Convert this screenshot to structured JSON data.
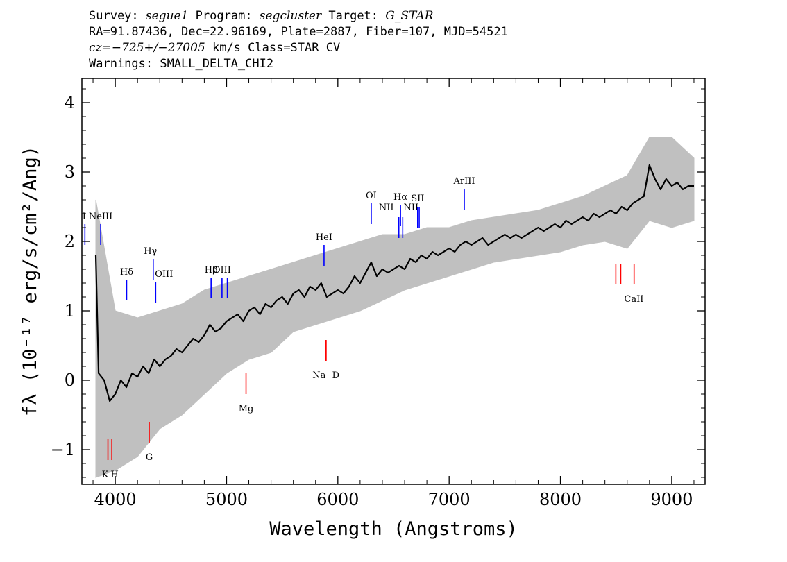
{
  "header": {
    "line1": {
      "survey_label": "Survey:",
      "survey": "segue1",
      "program_label": "Program:",
      "program": "segcluster",
      "target_label": "Target:",
      "target": "G_STAR"
    },
    "line2": "RA=91.87436, Dec=22.96169, Plate=2887, Fiber=107, MJD=54521",
    "line3": {
      "cz": "cz=−725+/−27005",
      "rest": " km/s Class=STAR CV"
    },
    "line4": "Warnings: SMALL_DELTA_CHI2"
  },
  "chart_data": {
    "type": "line",
    "xlabel": "Wavelength (Angstroms)",
    "ylabel": "fλ (10⁻¹⁷ erg/s/cm²/Ang)",
    "xlim": [
      3700,
      9300
    ],
    "ylim": [
      -1.5,
      4.35
    ],
    "xticks": [
      4000,
      5000,
      6000,
      7000,
      8000,
      9000
    ],
    "yticks": [
      -1,
      0,
      1,
      2,
      3,
      4
    ],
    "ytick_labels": [
      "−1",
      "0",
      "1",
      "2",
      "3",
      "4"
    ],
    "grid": false,
    "colors": {
      "flux": "#000000",
      "noise": "#c0c0c0",
      "emission": "#0000ff",
      "absorption": "#ff0000"
    },
    "series": [
      {
        "kind": "flux",
        "x": [
          3825,
          3850,
          3900,
          3950,
          4000,
          4050,
          4100,
          4150,
          4200,
          4250,
          4300,
          4350,
          4400,
          4450,
          4500,
          4550,
          4600,
          4650,
          4700,
          4750,
          4800,
          4850,
          4900,
          4950,
          5000,
          5050,
          5100,
          5150,
          5200,
          5250,
          5300,
          5350,
          5400,
          5450,
          5500,
          5550,
          5600,
          5650,
          5700,
          5750,
          5800,
          5850,
          5900,
          5950,
          6000,
          6050,
          6100,
          6150,
          6200,
          6250,
          6300,
          6350,
          6400,
          6450,
          6500,
          6550,
          6600,
          6650,
          6700,
          6750,
          6800,
          6850,
          6900,
          6950,
          7000,
          7050,
          7100,
          7150,
          7200,
          7250,
          7300,
          7350,
          7400,
          7450,
          7500,
          7550,
          7600,
          7650,
          7700,
          7750,
          7800,
          7850,
          7900,
          7950,
          8000,
          8050,
          8100,
          8150,
          8200,
          8250,
          8300,
          8350,
          8400,
          8450,
          8500,
          8550,
          8600,
          8650,
          8700,
          8750,
          8800,
          8850,
          8900,
          8950,
          9000,
          9050,
          9100,
          9150,
          9200
        ],
        "y": [
          1.8,
          0.1,
          0.0,
          -0.3,
          -0.2,
          0.0,
          -0.1,
          0.1,
          0.05,
          0.2,
          0.1,
          0.3,
          0.2,
          0.3,
          0.35,
          0.45,
          0.4,
          0.5,
          0.6,
          0.55,
          0.65,
          0.8,
          0.7,
          0.75,
          0.85,
          0.9,
          0.95,
          0.85,
          1.0,
          1.05,
          0.95,
          1.1,
          1.05,
          1.15,
          1.2,
          1.1,
          1.25,
          1.3,
          1.2,
          1.35,
          1.3,
          1.4,
          1.2,
          1.25,
          1.3,
          1.25,
          1.35,
          1.5,
          1.4,
          1.55,
          1.7,
          1.5,
          1.6,
          1.55,
          1.6,
          1.65,
          1.6,
          1.75,
          1.7,
          1.8,
          1.75,
          1.85,
          1.8,
          1.85,
          1.9,
          1.85,
          1.95,
          2.0,
          1.95,
          2.0,
          2.05,
          1.95,
          2.0,
          2.05,
          2.1,
          2.05,
          2.1,
          2.05,
          2.1,
          2.15,
          2.2,
          2.15,
          2.2,
          2.25,
          2.2,
          2.3,
          2.25,
          2.3,
          2.35,
          2.3,
          2.4,
          2.35,
          2.4,
          2.45,
          2.4,
          2.5,
          2.45,
          2.55,
          2.6,
          2.65,
          3.1,
          2.9,
          2.75,
          2.9,
          2.8,
          2.85,
          2.75,
          2.8,
          2.8
        ]
      },
      {
        "kind": "noise_envelope",
        "x": [
          3825,
          4000,
          4200,
          4400,
          4600,
          4800,
          5000,
          5200,
          5400,
          5600,
          5800,
          6000,
          6200,
          6400,
          6600,
          6800,
          7000,
          7200,
          7400,
          7600,
          7800,
          8000,
          8200,
          8400,
          8600,
          8800,
          9000,
          9200
        ],
        "upper": [
          2.6,
          1.0,
          0.9,
          1.0,
          1.1,
          1.3,
          1.4,
          1.5,
          1.6,
          1.7,
          1.8,
          1.9,
          2.0,
          2.1,
          2.1,
          2.2,
          2.2,
          2.3,
          2.35,
          2.4,
          2.45,
          2.55,
          2.65,
          2.8,
          2.95,
          3.5,
          3.5,
          3.2
        ],
        "lower": [
          -1.4,
          -1.3,
          -1.1,
          -0.7,
          -0.5,
          -0.2,
          0.1,
          0.3,
          0.4,
          0.7,
          0.8,
          0.9,
          1.0,
          1.15,
          1.3,
          1.4,
          1.5,
          1.6,
          1.7,
          1.75,
          1.8,
          1.85,
          1.95,
          2.0,
          1.9,
          2.3,
          2.2,
          2.3
        ]
      }
    ],
    "line_markers": [
      {
        "label": "[NeIII]",
        "display": "NeIII",
        "x": 3869,
        "kind": "emission",
        "y1": 2.25,
        "y2": 1.95,
        "label_y": 2.32
      },
      {
        "label": "[OII]",
        "display": "I",
        "x": 3727,
        "kind": "emission",
        "y1": 2.25,
        "y2": 1.95,
        "label_y": 2.32
      },
      {
        "label": "Hδ",
        "display": "Hδ",
        "x": 4102,
        "kind": "emission",
        "y1": 1.45,
        "y2": 1.15,
        "label_y": 1.52
      },
      {
        "label": "Hγ",
        "display": "Hγ",
        "x": 4341,
        "kind": "emission",
        "y1": 1.75,
        "y2": 1.45,
        "label_y": 1.82
      },
      {
        "label": "OIII",
        "display": "OIII",
        "x": 4363,
        "kind": "emission",
        "y1": 1.42,
        "y2": 1.12,
        "label_y": 1.49
      },
      {
        "label": "Hβ",
        "display": "Hβ",
        "x": 4861,
        "kind": "emission",
        "y1": 1.48,
        "y2": 1.18,
        "label_y": 1.55
      },
      {
        "label": "OIII",
        "display": "OIII",
        "x": 4959,
        "kind": "emission",
        "y1": 1.48,
        "y2": 1.18,
        "label_y": 1.55
      },
      {
        "label": "OIII",
        "display": "",
        "x": 5007,
        "kind": "emission",
        "y1": 1.48,
        "y2": 1.18,
        "label_y": 1.55
      },
      {
        "label": "HeI",
        "display": "HeI",
        "x": 5876,
        "kind": "emission",
        "y1": 1.95,
        "y2": 1.65,
        "label_y": 2.02
      },
      {
        "label": "OI",
        "display": "OI",
        "x": 6300,
        "kind": "emission",
        "y1": 2.55,
        "y2": 2.25,
        "label_y": 2.62
      },
      {
        "label": "NII",
        "display": "NII",
        "x": 6548,
        "kind": "emission",
        "y1": 2.35,
        "y2": 2.05,
        "label_y": 2.45
      },
      {
        "label": "Hα",
        "display": "Hα",
        "x": 6563,
        "kind": "emission",
        "y1": 2.52,
        "y2": 2.22,
        "label_y": 2.6
      },
      {
        "label": "NII",
        "display": "NII",
        "x": 6583,
        "kind": "emission",
        "y1": 2.35,
        "y2": 2.05,
        "label_y": 2.45
      },
      {
        "label": "SII",
        "display": "SII",
        "x": 6717,
        "kind": "emission",
        "y1": 2.5,
        "y2": 2.2,
        "label_y": 2.58
      },
      {
        "label": "SII",
        "display": "",
        "x": 6731,
        "kind": "emission",
        "y1": 2.5,
        "y2": 2.2,
        "label_y": 2.58
      },
      {
        "label": "ArIII",
        "display": "ArIII",
        "x": 7136,
        "kind": "emission",
        "y1": 2.75,
        "y2": 2.45,
        "label_y": 2.83
      },
      {
        "label": "K",
        "display": "K",
        "x": 3934,
        "kind": "absorption",
        "y1": -0.85,
        "y2": -1.15,
        "label_y": -1.3
      },
      {
        "label": "H",
        "display": "H",
        "x": 3969,
        "kind": "absorption",
        "y1": -0.85,
        "y2": -1.15,
        "label_y": -1.3
      },
      {
        "label": "G",
        "display": "G",
        "x": 4305,
        "kind": "absorption",
        "y1": -0.6,
        "y2": -0.9,
        "label_y": -1.05
      },
      {
        "label": "Mg",
        "display": "Mg",
        "x": 5175,
        "kind": "absorption",
        "y1": 0.1,
        "y2": -0.2,
        "label_y": -0.35
      },
      {
        "label": "Na D",
        "display": "Na",
        "x": 5894,
        "kind": "absorption",
        "y1": 0.58,
        "y2": 0.28,
        "label_y": 0.13
      },
      {
        "label": "Na D",
        "display": "D",
        "x": 5894,
        "kind": "absorption",
        "y1": 0.58,
        "y2": 0.28,
        "label_y": 0.13
      },
      {
        "label": "CaII",
        "display": "CaII",
        "x": 8498,
        "kind": "absorption",
        "y1": 1.68,
        "y2": 1.38,
        "label_y": 1.23
      },
      {
        "label": "CaII",
        "display": "",
        "x": 8542,
        "kind": "absorption",
        "y1": 1.68,
        "y2": 1.38,
        "label_y": 1.23
      },
      {
        "label": "CaII",
        "display": "",
        "x": 8662,
        "kind": "absorption",
        "y1": 1.68,
        "y2": 1.38,
        "label_y": 1.23
      }
    ]
  }
}
